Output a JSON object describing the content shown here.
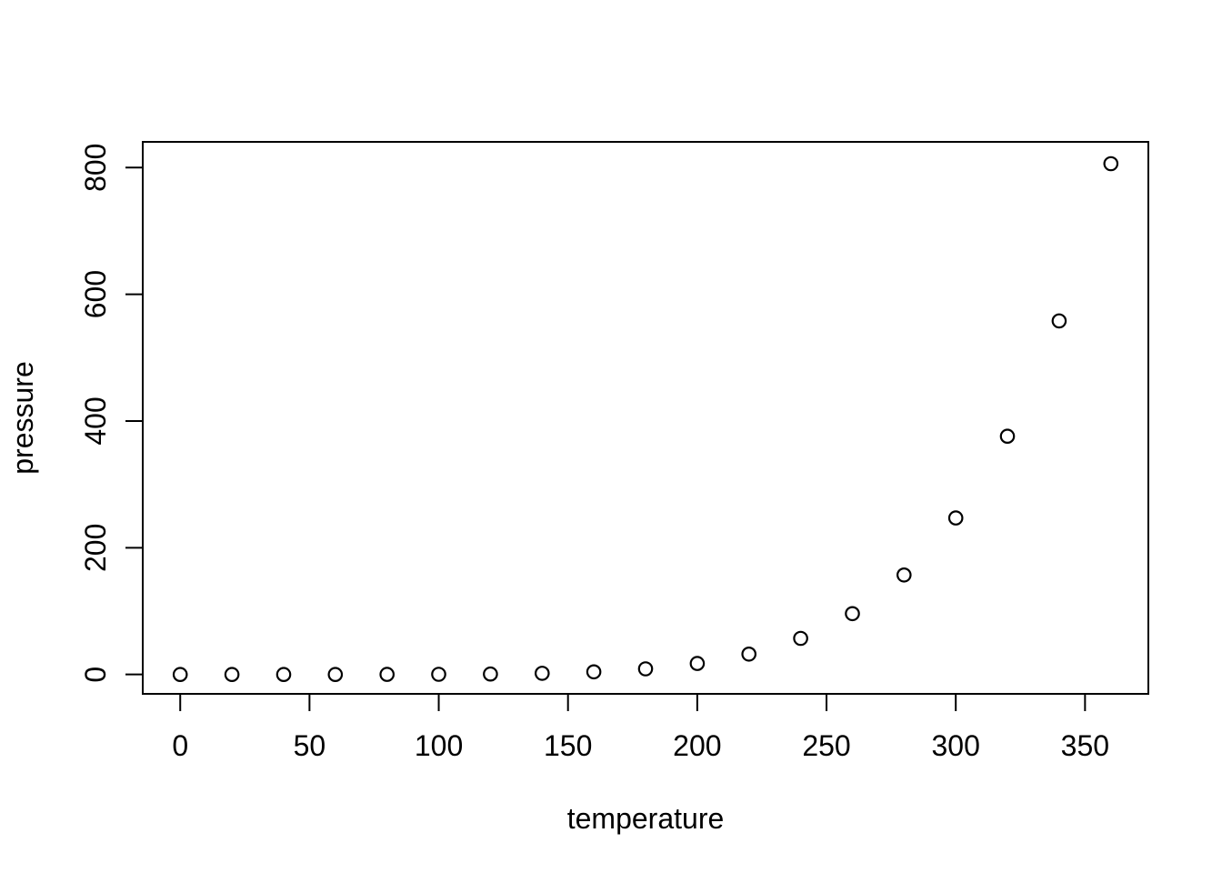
{
  "figure": {
    "background_color": "#ffffff",
    "foreground_color": "#000000"
  },
  "chart_data": {
    "type": "scatter",
    "title": "",
    "xlabel": "temperature",
    "ylabel": "pressure",
    "marker": "open-circle",
    "marker_color": "#000000",
    "grid": false,
    "legend_position": "none",
    "x_ticks": [
      0,
      50,
      100,
      150,
      200,
      250,
      300,
      350
    ],
    "y_ticks": [
      0,
      200,
      400,
      600,
      800
    ],
    "xlim": [
      -14.5,
      374.5
    ],
    "ylim": [
      -30.6,
      840.5
    ],
    "series": [
      {
        "name": "pressure vs temperature",
        "x": [
          0,
          20,
          40,
          60,
          80,
          100,
          120,
          140,
          160,
          180,
          200,
          220,
          240,
          260,
          280,
          300,
          320,
          340,
          360
        ],
        "y": [
          0.0002,
          0.0012,
          0.006,
          0.03,
          0.09,
          0.27,
          0.75,
          1.85,
          4.2,
          8.8,
          17.3,
          32.1,
          57,
          96,
          157,
          247,
          376,
          558,
          806
        ]
      }
    ]
  }
}
